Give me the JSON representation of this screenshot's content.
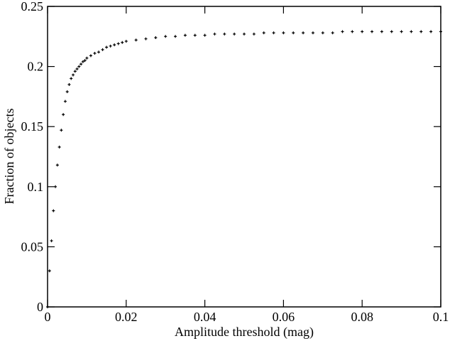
{
  "chart_data": {
    "type": "scatter",
    "xlabel": "Amplitude threshold (mag)",
    "ylabel": "Fraction of objects",
    "x": [
      0,
      0.0005,
      0.001,
      0.0015,
      0.002,
      0.0025,
      0.003,
      0.0035,
      0.004,
      0.0045,
      0.005,
      0.0055,
      0.006,
      0.0065,
      0.007,
      0.0075,
      0.008,
      0.0085,
      0.009,
      0.0095,
      0.01,
      0.011,
      0.012,
      0.013,
      0.014,
      0.015,
      0.016,
      0.017,
      0.018,
      0.019,
      0.02,
      0.0225,
      0.025,
      0.0275,
      0.03,
      0.0325,
      0.035,
      0.0375,
      0.04,
      0.0425,
      0.045,
      0.0475,
      0.05,
      0.0525,
      0.055,
      0.0575,
      0.06,
      0.0625,
      0.065,
      0.0675,
      0.07,
      0.0725,
      0.075,
      0.0775,
      0.08,
      0.0825,
      0.085,
      0.0875,
      0.09,
      0.0925,
      0.095,
      0.0975,
      0.1
    ],
    "values": [
      0,
      0.03,
      0.055,
      0.08,
      0.1,
      0.118,
      0.133,
      0.147,
      0.16,
      0.171,
      0.179,
      0.185,
      0.19,
      0.193,
      0.196,
      0.198,
      0.2,
      0.202,
      0.204,
      0.205,
      0.207,
      0.209,
      0.211,
      0.212,
      0.214,
      0.216,
      0.217,
      0.218,
      0.219,
      0.22,
      0.221,
      0.222,
      0.223,
      0.224,
      0.225,
      0.225,
      0.226,
      0.226,
      0.226,
      0.227,
      0.227,
      0.227,
      0.227,
      0.227,
      0.228,
      0.228,
      0.228,
      0.228,
      0.228,
      0.228,
      0.228,
      0.228,
      0.229,
      0.229,
      0.229,
      0.229,
      0.229,
      0.229,
      0.229,
      0.229,
      0.229,
      0.229,
      0.229
    ],
    "color": "#000000",
    "xlim": [
      0,
      0.1
    ],
    "xticks": [
      0,
      0.02,
      0.04,
      0.06,
      0.08,
      0.1
    ],
    "ylim": [
      0,
      0.25
    ],
    "yticks": [
      0,
      0.05,
      0.1,
      0.15,
      0.2,
      0.25
    ],
    "grid": false
  }
}
